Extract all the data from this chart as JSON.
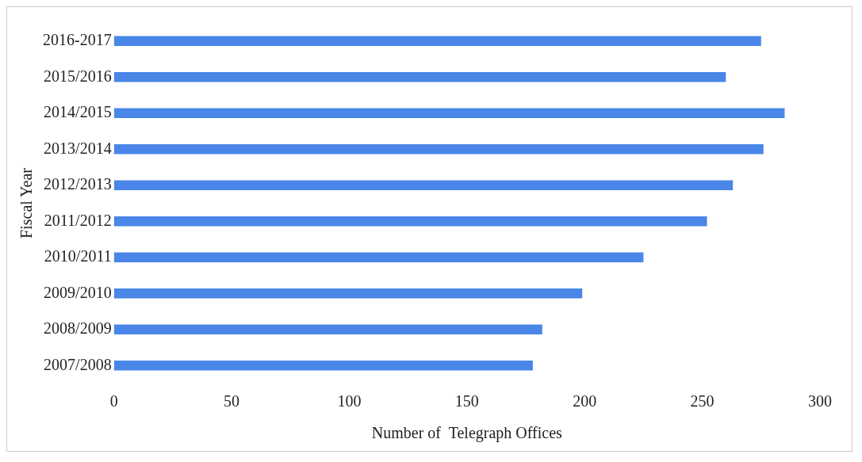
{
  "chart_data": {
    "type": "bar",
    "orientation": "horizontal",
    "xlabel": "Number of  Telegraph Offices",
    "ylabel": "Fiscal Year",
    "categories": [
      "2016-2017",
      "2015/2016",
      "2014/2015",
      "2013/2014",
      "2012/2013",
      "2011/2012",
      "2010/2011",
      "2009/2010",
      "2008/2009",
      "2007/2008"
    ],
    "values": [
      275,
      260,
      285,
      276,
      263,
      252,
      225,
      199,
      182,
      178
    ],
    "color": "#4a86e8",
    "xlim": [
      0,
      300
    ],
    "xticks": [
      0,
      50,
      100,
      150,
      200,
      250,
      300
    ],
    "grid": false,
    "legend": false
  }
}
